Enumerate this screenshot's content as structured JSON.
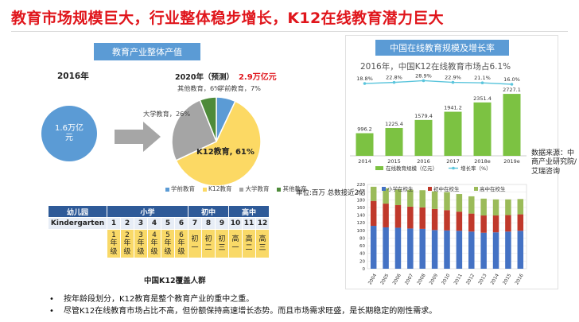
{
  "title": "教育市场规模巨大，行业整体稳步增长，K12在线教育潜力巨大",
  "left": {
    "header": "教育产业整体产值",
    "year_2016": "2016年",
    "year_2020": "2020年（预测）",
    "value_2020": "2.9万亿元",
    "circle_value": "1.6万亿元",
    "pie": {
      "labels": [
        "学前教育，7%",
        "K12教育, 61%",
        "大学教育，26%",
        "其他教育，6%"
      ],
      "legend": [
        "学前教育",
        "K12教育",
        "大学教育",
        "其他教育"
      ],
      "values": [
        7,
        61,
        26,
        6
      ],
      "colors": [
        "#5b9bd5",
        "#fcd964",
        "#a5a5a5",
        "#4e8b3a"
      ]
    },
    "table": {
      "stage_headers": [
        "幼儿园",
        "小学",
        "初中",
        "高中"
      ],
      "kg_label": "Kindergarten",
      "grades_num": [
        "1",
        "2",
        "3",
        "4",
        "5",
        "6",
        "7",
        "8",
        "9",
        "10",
        "11",
        "12"
      ],
      "grades_cn": [
        "1年级",
        "2年级",
        "3年级",
        "4年级",
        "5年级",
        "6年级",
        "初一",
        "初二",
        "初三",
        "高一",
        "高二",
        "高三"
      ],
      "caption": "中国K12覆盖人群"
    }
  },
  "right": {
    "header": "中国在线教育规模及增长率",
    "subtitle": "2016年，中国K12在线教育市场占6.1%",
    "source": "数据来源：中商产业研究院/艾瑞咨询",
    "unit": "单位:百万 总数接近2亿",
    "chart_top": {
      "type": "bar+line",
      "categories": [
        "2014",
        "2015",
        "2016",
        "2017",
        "2018e",
        "2019e"
      ],
      "bar_values": [
        996.2,
        1225.4,
        1579.4,
        1941.2,
        2351.4,
        2727.1
      ],
      "bar_labels": [
        "996.2",
        "1225.4",
        "1579.4",
        "1941.2",
        "2351.4",
        "2727.1"
      ],
      "growth": [
        18.8,
        22.8,
        28.9,
        22.9,
        21.1,
        16.0
      ],
      "growth_labels": [
        "18.8%",
        "22.8%",
        "28.9%",
        "22.9%",
        "21.1%",
        "16.0%"
      ],
      "legend_bar": "在线教育规模（亿元）",
      "legend_line": "增长率（%）",
      "bar_color": "#7cc242",
      "line_color": "#5bc5dc"
    },
    "chart_bottom": {
      "type": "stacked bar",
      "categories": [
        "2004",
        "2005",
        "2006",
        "2007",
        "2008",
        "2009",
        "2010",
        "2011",
        "2012",
        "2013",
        "2014",
        "2015",
        "2016"
      ],
      "series": [
        {
          "name": "小学在校生",
          "values": [
            112,
            108,
            107,
            105,
            104,
            101,
            100,
            99,
            97,
            94,
            95,
            97,
            99
          ],
          "color": "#4472c4"
        },
        {
          "name": "初中在校生",
          "values": [
            65,
            62,
            59,
            57,
            56,
            55,
            53,
            50,
            47,
            45,
            44,
            43,
            43
          ],
          "color": "#c0392b"
        },
        {
          "name": "高中在校生",
          "values": [
            37,
            40,
            41,
            44,
            45,
            46,
            47,
            46,
            45,
            44,
            42,
            41,
            40
          ],
          "color": "#9bbb59"
        }
      ],
      "yticks": [
        "0",
        "20",
        "40",
        "60",
        "80",
        "100",
        "120",
        "140",
        "160",
        "180",
        "200",
        "220"
      ],
      "ylim": [
        0,
        220
      ]
    }
  },
  "bullets": [
    "按年龄段划分，K12教育是整个教育产业的重中之重。",
    "尽管K12在线教育市场占比不高，但份额保持高速增长态势。而且市场需求旺盛，是长期稳定的刚性需求。"
  ]
}
